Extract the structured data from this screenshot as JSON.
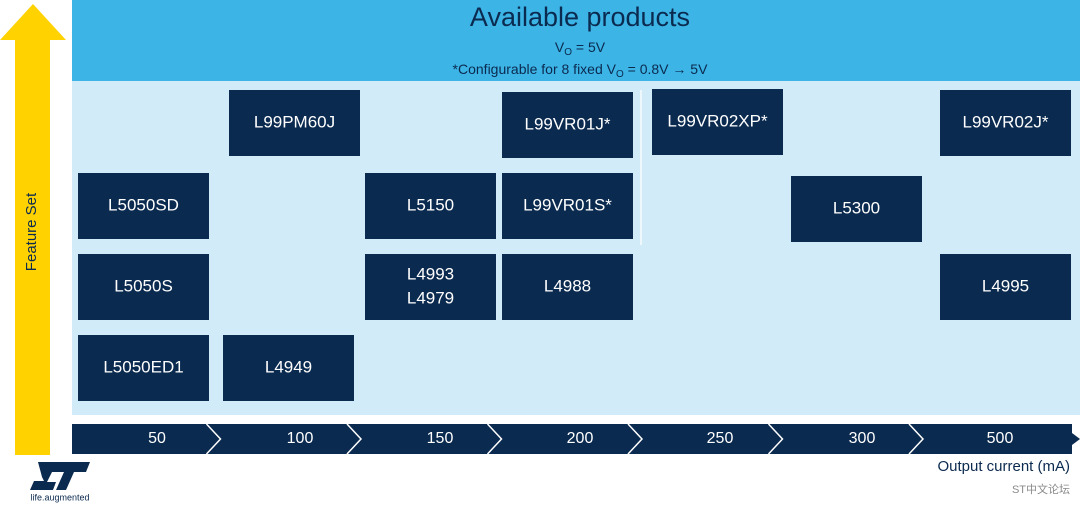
{
  "header": {
    "title": "Available products",
    "line1": [
      "V",
      "O",
      " = 5V"
    ],
    "line2": [
      "*Configurable for 8 fixed V",
      "O",
      " = 0.8V → 5V"
    ]
  },
  "y_axis_label": "Feature Set",
  "x_axis": {
    "categories": [
      "50",
      "100",
      "150",
      "200",
      "250",
      "300",
      "500"
    ],
    "label": "Output current (mA)"
  },
  "products": [
    {
      "lines": [
        "L99PM60J"
      ]
    },
    {
      "lines": [
        "L99VR01J*"
      ]
    },
    {
      "lines": [
        "L99VR02XP*"
      ]
    },
    {
      "lines": [
        "L99VR02J*"
      ]
    },
    {
      "lines": [
        "L5050SD"
      ]
    },
    {
      "lines": [
        "L5150"
      ]
    },
    {
      "lines": [
        "L99VR01S*"
      ]
    },
    {
      "lines": [
        "L5300"
      ]
    },
    {
      "lines": [
        "L5050S"
      ]
    },
    {
      "lines": [
        "L4993",
        "L4979"
      ]
    },
    {
      "lines": [
        "L4988"
      ]
    },
    {
      "lines": [
        "L4995"
      ]
    },
    {
      "lines": [
        "L5050ED1"
      ]
    },
    {
      "lines": [
        "L4949"
      ]
    }
  ],
  "logo": {
    "tagline": "life.augmented"
  },
  "watermark": "ST中文论坛"
}
